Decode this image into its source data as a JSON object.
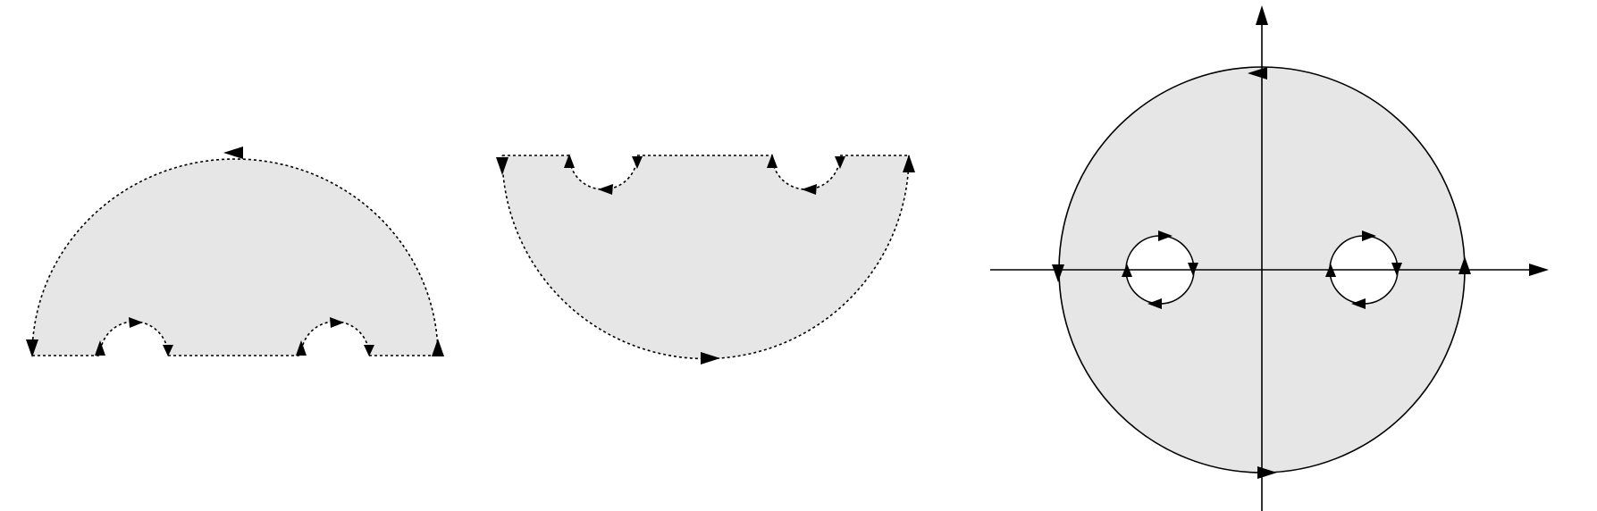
{
  "figure": {
    "panels": [
      {
        "name": "upper-half-disk-contour",
        "boundary": "dashed",
        "indentations": 2,
        "orientation": "counterclockwise"
      },
      {
        "name": "lower-half-disk-contour",
        "boundary": "dashed",
        "indentations": 2,
        "orientation": "counterclockwise"
      },
      {
        "name": "full-disk-contour",
        "boundary": "solid",
        "holes": 2,
        "axes": true,
        "orientation": "counterclockwise"
      }
    ],
    "colors": {
      "region_fill": "#e6e6e6",
      "stroke": "#000000",
      "background": "#ffffff"
    }
  }
}
